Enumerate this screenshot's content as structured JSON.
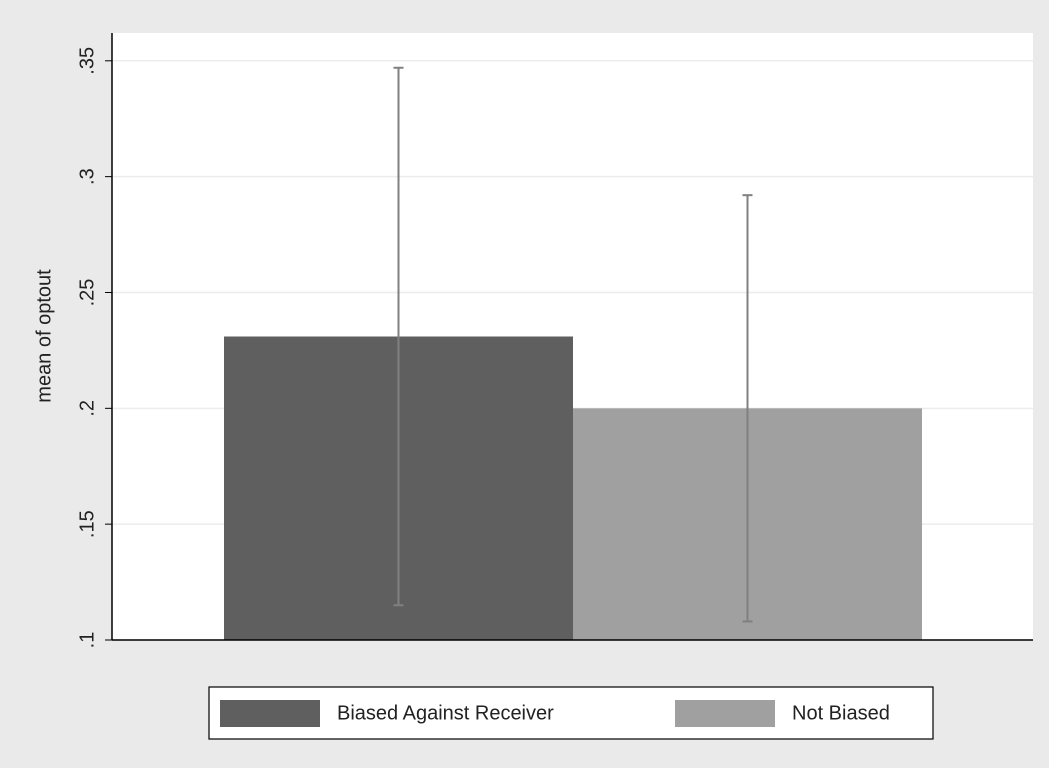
{
  "chart_data": {
    "type": "bar",
    "ylabel": "mean of optout",
    "series": [
      {
        "name": "Biased Against Receiver",
        "color": "#5f5f5f",
        "values": [
          0.231
        ],
        "errors": [
          0.116
        ]
      },
      {
        "name": "Not Biased",
        "color": "#a0a0a0",
        "values": [
          0.2
        ],
        "errors": [
          0.092
        ]
      }
    ],
    "errorbar_color": "#808080",
    "ylim": [
      0.1,
      0.362
    ],
    "yticks": [
      {
        "value": 0.1,
        "label": ".1"
      },
      {
        "value": 0.15,
        "label": ".15"
      },
      {
        "value": 0.2,
        "label": ".2"
      },
      {
        "value": 0.25,
        "label": ".25"
      },
      {
        "value": 0.3,
        "label": ".3"
      },
      {
        "value": 0.35,
        "label": ".35"
      }
    ],
    "grid": true,
    "legend": "bottom"
  }
}
